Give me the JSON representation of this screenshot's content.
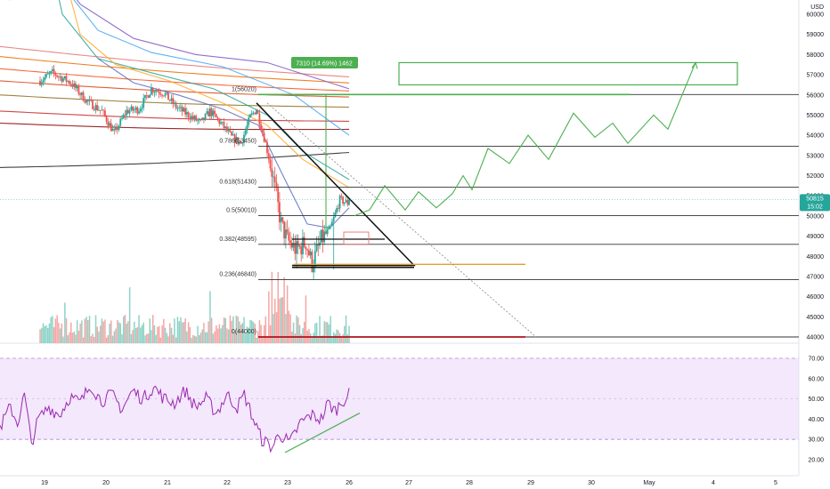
{
  "chart_data": {
    "type": "candlestick",
    "currency": "USD",
    "price_axis_ticks": [
      "60000",
      "59000",
      "58000",
      "57000",
      "56000",
      "55000",
      "54000",
      "53000",
      "52000",
      "51000",
      "50000",
      "49000",
      "48000",
      "47000",
      "46000",
      "45000",
      "44000"
    ],
    "rsi_axis_ticks": [
      "70.00",
      "60.00",
      "50.00",
      "40.00",
      "30.00",
      "20.00"
    ],
    "x_ticks": [
      "19",
      "20",
      "21",
      "22",
      "23",
      "26",
      "27",
      "28",
      "29",
      "30",
      "May",
      "4",
      "5"
    ],
    "last_price": {
      "value": 50815,
      "label": "50815",
      "countdown": "15:02"
    },
    "fib_levels": [
      {
        "label": "1(56020)",
        "price": 56020
      },
      {
        "label": "0.786(53450)",
        "price": 53450
      },
      {
        "label": "0.618(51430)",
        "price": 51430
      },
      {
        "label": "0.5(50010)",
        "price": 50010
      },
      {
        "label": "0.382(48595)",
        "price": 48595
      },
      {
        "label": "0.236(46840)",
        "price": 46840
      },
      {
        "label": "0(44000)",
        "price": 44000
      }
    ],
    "measure_label": "7310 (14.69%) 1462",
    "target_zone": {
      "from": 56500,
      "to": 57600
    },
    "horizontal_lines": [
      {
        "price": 47550,
        "color": "#e0a030"
      },
      {
        "price": 44000,
        "color": "#b0121b"
      },
      {
        "price": 56020,
        "color": "#4caf50"
      }
    ],
    "colors": {
      "up": "#26a69a",
      "down": "#ef5350",
      "fib": "#333333",
      "rsi": "#9c27b0",
      "target": "#4caf50"
    },
    "rsi_range": [
      30,
      70
    ],
    "projection_path": [
      [
        50010,
        50000
      ],
      [
        51500,
        50600
      ],
      [
        50300,
        51400
      ],
      [
        51100,
        50500
      ],
      [
        52200,
        51000
      ],
      [
        53800,
        52700
      ],
      [
        52600,
        53300
      ],
      [
        54700,
        52800
      ],
      [
        53400,
        54500
      ],
      [
        55100,
        53600
      ],
      [
        54300,
        55000
      ],
      [
        54800,
        53500
      ],
      [
        55700,
        54400
      ],
      [
        54500,
        57600
      ]
    ]
  }
}
